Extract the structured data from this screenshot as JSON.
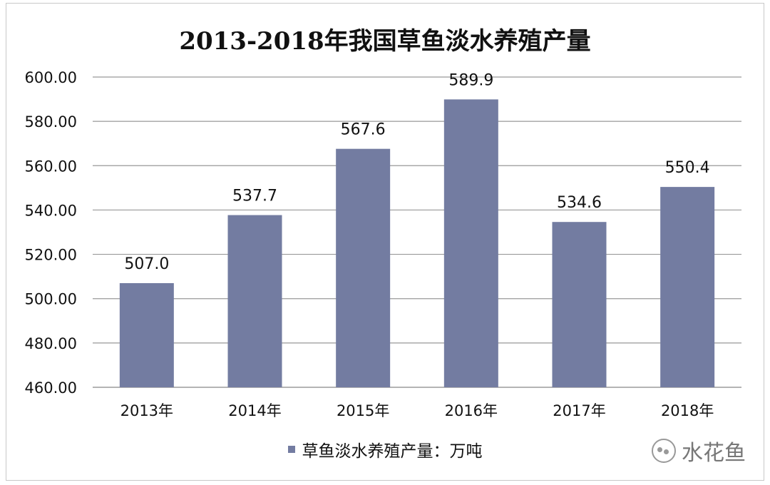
{
  "chart_data": {
    "type": "bar",
    "title": "2013-2018年我国草鱼淡水养殖产量",
    "categories": [
      "2013年",
      "2014年",
      "2015年",
      "2016年",
      "2017年",
      "2018年"
    ],
    "series": [
      {
        "name": "草鱼淡水养殖产量：万吨",
        "values": [
          507.0,
          537.7,
          567.6,
          589.9,
          534.6,
          550.4
        ],
        "labels": [
          "507.0",
          "537.7",
          "567.6",
          "589.9",
          "534.6",
          "550.4"
        ],
        "color": "#737ca1"
      }
    ],
    "ylim": [
      460,
      600
    ],
    "yticks": [
      "460.00",
      "480.00",
      "500.00",
      "520.00",
      "540.00",
      "560.00",
      "580.00",
      "600.00"
    ],
    "grid": true,
    "legend_position": "bottom"
  },
  "watermark": {
    "text": "水花鱼"
  }
}
